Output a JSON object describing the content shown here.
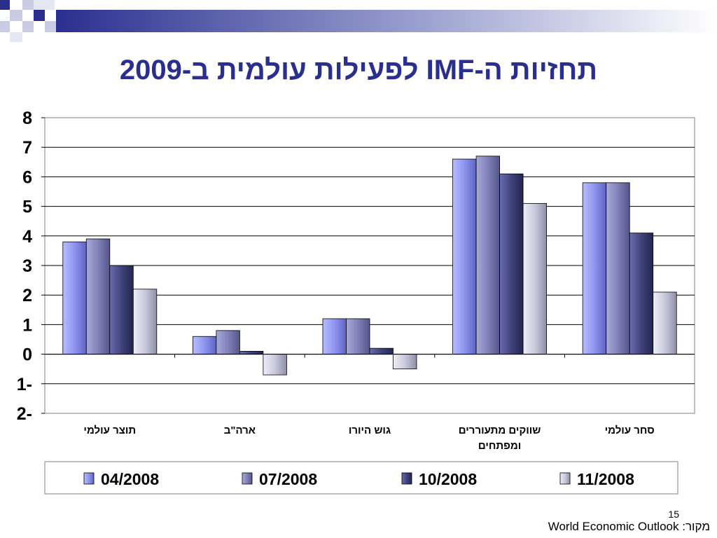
{
  "slide": {
    "title": "תחזיות ה-IMF לפעילות עולמית ב-2009",
    "page_number": "15",
    "source_label": "מקור:",
    "source_text": "World Economic Outlook"
  },
  "colors": {
    "title": "#2a2f8f",
    "series": [
      "#8f95ee",
      "#7f81b8",
      "#40437a",
      "#c9c9dd"
    ]
  },
  "chart_data": {
    "type": "bar",
    "categories": [
      "תוצר עולמי",
      "ארה\"ב",
      "גוש היורו",
      "שווקים מתעוררים ומפתחים",
      "סחר עולמי"
    ],
    "series": [
      {
        "name": "04/2008",
        "values": [
          3.8,
          0.6,
          1.2,
          6.6,
          5.8
        ]
      },
      {
        "name": "07/2008",
        "values": [
          3.9,
          0.8,
          1.2,
          6.7,
          5.8
        ]
      },
      {
        "name": "10/2008",
        "values": [
          3.0,
          0.1,
          0.2,
          6.1,
          4.1
        ]
      },
      {
        "name": "11/2008",
        "values": [
          2.2,
          -0.7,
          -0.5,
          5.1,
          2.1
        ]
      }
    ],
    "ylim": [
      -2,
      8
    ],
    "yticks": [
      -2,
      -1,
      0,
      1,
      2,
      3,
      4,
      5,
      6,
      7,
      8
    ],
    "grid": true,
    "legend_position": "bottom"
  }
}
